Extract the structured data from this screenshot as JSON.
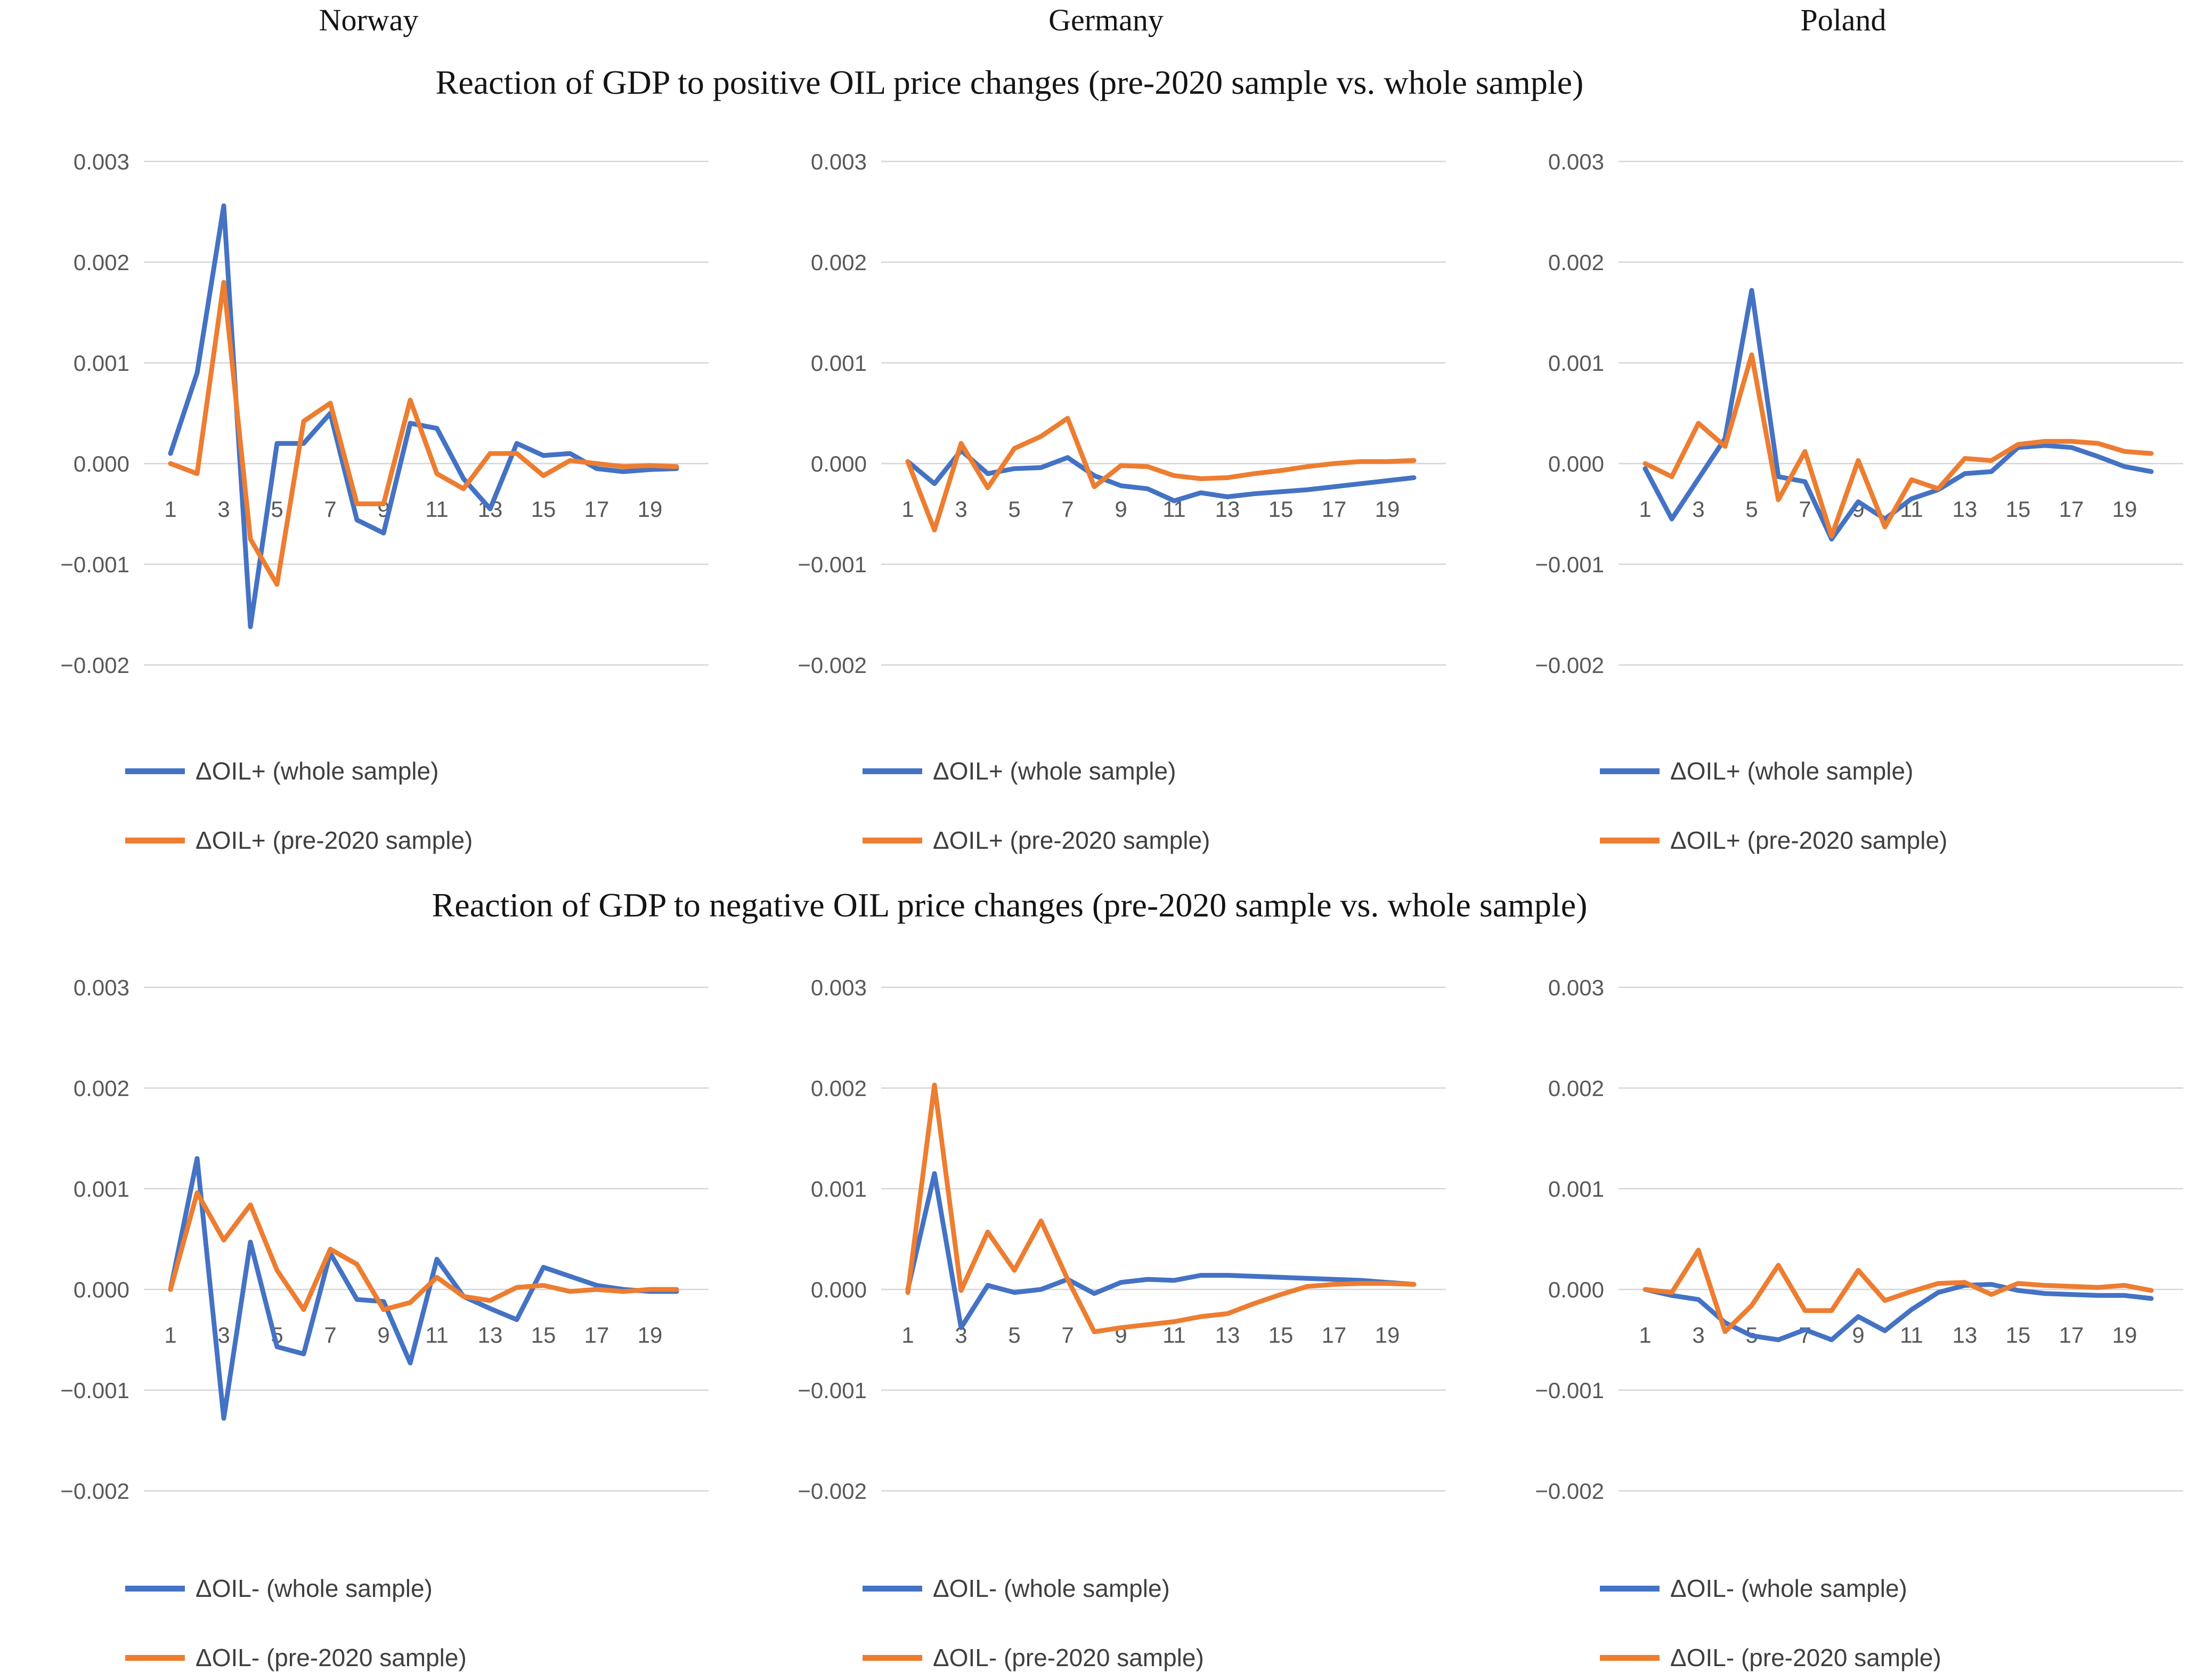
{
  "columns": [
    "Norway",
    "Germany",
    "Poland"
  ],
  "sections": [
    {
      "title": "Reaction of GDP to positive OIL price changes (pre-2020 sample vs. whole sample)"
    },
    {
      "title": "Reaction of GDP to negative OIL price changes (pre-2020 sample vs. whole sample)"
    }
  ],
  "colors": {
    "whole_sample_line": "#4472C4",
    "pre2020_sample_line": "#ED7D31",
    "gridline": "#D6D6D6",
    "tick_text": "#595959",
    "title_text": "#141414"
  },
  "axis": {
    "y_ticks": [
      0.003,
      0.002,
      0.001,
      0.0,
      -0.001,
      -0.002
    ],
    "y_tick_labels": [
      "0.003",
      "0.002",
      "0.001",
      "0.000",
      "−0.001",
      "−0.002"
    ],
    "x_ticks": [
      1,
      3,
      5,
      7,
      9,
      11,
      13,
      15,
      17,
      19
    ],
    "x_range": [
      1,
      20
    ],
    "grid": "horizontal-only",
    "legend_position": "below-left"
  },
  "chart_data": [
    {
      "id": "norway-positive",
      "country": "Norway",
      "shock": "positive",
      "type": "line",
      "x": [
        1,
        2,
        3,
        4,
        5,
        6,
        7,
        8,
        9,
        10,
        11,
        12,
        13,
        14,
        15,
        16,
        17,
        18,
        19,
        20
      ],
      "ylim": [
        -0.002,
        0.003
      ],
      "series": [
        {
          "name": "ΔOIL+ (whole sample)",
          "color": "#4472C4",
          "values": [
            0.0001,
            0.0009,
            0.00256,
            -0.00162,
            0.0002,
            0.0002,
            0.0005,
            -0.00056,
            -0.00069,
            0.0004,
            0.00035,
            -0.00015,
            -0.00045,
            0.0002,
            8e-05,
            0.0001,
            -5e-05,
            -8e-05,
            -6e-05,
            -5e-05
          ]
        },
        {
          "name": "ΔOIL+ (pre-2020 sample)",
          "color": "#ED7D31",
          "values": [
            0.0,
            -0.0001,
            0.0018,
            -0.00075,
            -0.0012,
            0.00042,
            0.0006,
            -0.0004,
            -0.0004,
            0.00063,
            -0.0001,
            -0.00025,
            0.0001,
            0.0001,
            -0.00012,
            3e-05,
            0.0,
            -3e-05,
            -2e-05,
            -3e-05
          ]
        }
      ]
    },
    {
      "id": "germany-positive",
      "country": "Germany",
      "shock": "positive",
      "type": "line",
      "x": [
        1,
        2,
        3,
        4,
        5,
        6,
        7,
        8,
        9,
        10,
        11,
        12,
        13,
        14,
        15,
        16,
        17,
        18,
        19,
        20
      ],
      "ylim": [
        -0.002,
        0.003
      ],
      "series": [
        {
          "name": "ΔOIL+ (whole sample)",
          "color": "#4472C4",
          "values": [
            2e-05,
            -0.0002,
            0.00013,
            -0.0001,
            -5e-05,
            -4e-05,
            6e-05,
            -0.00012,
            -0.00022,
            -0.00025,
            -0.00037,
            -0.00029,
            -0.00033,
            -0.0003,
            -0.00028,
            -0.00026,
            -0.00023,
            -0.0002,
            -0.00017,
            -0.00014
          ]
        },
        {
          "name": "ΔOIL+ (pre-2020 sample)",
          "color": "#ED7D31",
          "values": [
            2e-05,
            -0.00066,
            0.0002,
            -0.00024,
            0.00015,
            0.00027,
            0.00045,
            -0.00023,
            -2e-05,
            -3e-05,
            -0.00012,
            -0.00015,
            -0.00014,
            -0.0001,
            -7e-05,
            -3e-05,
            0.0,
            2e-05,
            2e-05,
            3e-05
          ]
        }
      ]
    },
    {
      "id": "poland-positive",
      "country": "Poland",
      "shock": "positive",
      "type": "line",
      "x": [
        1,
        2,
        3,
        4,
        5,
        6,
        7,
        8,
        9,
        10,
        11,
        12,
        13,
        14,
        15,
        16,
        17,
        18,
        19,
        20
      ],
      "ylim": [
        -0.002,
        0.003
      ],
      "series": [
        {
          "name": "ΔOIL+ (whole sample)",
          "color": "#4472C4",
          "values": [
            -5e-05,
            -0.00055,
            -0.00015,
            0.00025,
            0.00172,
            -0.00013,
            -0.00018,
            -0.00075,
            -0.00038,
            -0.00055,
            -0.00035,
            -0.00026,
            -0.0001,
            -8e-05,
            0.00016,
            0.00018,
            0.00016,
            7e-05,
            -3e-05,
            -8e-05
          ]
        },
        {
          "name": "ΔOIL+ (pre-2020 sample)",
          "color": "#ED7D31",
          "values": [
            0.0,
            -0.00013,
            0.0004,
            0.00017,
            0.00108,
            -0.00036,
            0.00012,
            -0.00072,
            3e-05,
            -0.00063,
            -0.00016,
            -0.00025,
            5e-05,
            3e-05,
            0.00019,
            0.00022,
            0.00022,
            0.0002,
            0.00012,
            0.0001
          ]
        }
      ]
    },
    {
      "id": "norway-negative",
      "country": "Norway",
      "shock": "negative",
      "type": "line",
      "x": [
        1,
        2,
        3,
        4,
        5,
        6,
        7,
        8,
        9,
        10,
        11,
        12,
        13,
        14,
        15,
        16,
        17,
        18,
        19,
        20
      ],
      "ylim": [
        -0.002,
        0.003
      ],
      "series": [
        {
          "name": "ΔOIL- (whole sample)",
          "color": "#4472C4",
          "values": [
            0.0,
            0.0013,
            -0.00128,
            0.00047,
            -0.00057,
            -0.00064,
            0.00036,
            -0.0001,
            -0.00012,
            -0.00073,
            0.0003,
            -7e-05,
            -0.00019,
            -0.0003,
            0.00022,
            0.00013,
            4e-05,
            0.0,
            -2e-05,
            -2e-05
          ]
        },
        {
          "name": "ΔOIL- (pre-2020 sample)",
          "color": "#ED7D31",
          "values": [
            0.0,
            0.00096,
            0.00049,
            0.00084,
            0.00019,
            -0.0002,
            0.0004,
            0.00025,
            -0.0002,
            -0.00013,
            0.00012,
            -7e-05,
            -0.00011,
            2e-05,
            4e-05,
            -2e-05,
            0.0,
            -2e-05,
            0.0,
            0.0
          ]
        }
      ]
    },
    {
      "id": "germany-negative",
      "country": "Germany",
      "shock": "negative",
      "type": "line",
      "x": [
        1,
        2,
        3,
        4,
        5,
        6,
        7,
        8,
        9,
        10,
        11,
        12,
        13,
        14,
        15,
        16,
        17,
        18,
        19,
        20
      ],
      "ylim": [
        -0.002,
        0.003
      ],
      "series": [
        {
          "name": "ΔOIL- (whole sample)",
          "color": "#4472C4",
          "values": [
            0.0,
            0.00115,
            -0.00038,
            4e-05,
            -3e-05,
            0.0,
            0.0001,
            -4e-05,
            7e-05,
            0.0001,
            9e-05,
            0.00014,
            0.00014,
            0.00013,
            0.00012,
            0.00011,
            0.0001,
            9e-05,
            7e-05,
            5e-05
          ]
        },
        {
          "name": "ΔOIL- (pre-2020 sample)",
          "color": "#ED7D31",
          "values": [
            -3e-05,
            0.00203,
            -1e-05,
            0.00057,
            0.00019,
            0.00068,
            0.0001,
            -0.00042,
            -0.00038,
            -0.00035,
            -0.00032,
            -0.00027,
            -0.00024,
            -0.00014,
            -5e-05,
            3e-05,
            5e-05,
            6e-05,
            6e-05,
            5e-05
          ]
        }
      ]
    },
    {
      "id": "poland-negative",
      "country": "Poland",
      "shock": "negative",
      "type": "line",
      "x": [
        1,
        2,
        3,
        4,
        5,
        6,
        7,
        8,
        9,
        10,
        11,
        12,
        13,
        14,
        15,
        16,
        17,
        18,
        19,
        20
      ],
      "ylim": [
        -0.002,
        0.003
      ],
      "series": [
        {
          "name": "ΔOIL- (whole sample)",
          "color": "#4472C4",
          "values": [
            0.0,
            -6e-05,
            -0.0001,
            -0.00033,
            -0.00046,
            -0.0005,
            -0.0004,
            -0.0005,
            -0.00027,
            -0.00041,
            -0.0002,
            -3e-05,
            4e-05,
            5e-05,
            -1e-05,
            -4e-05,
            -5e-05,
            -6e-05,
            -6e-05,
            -9e-05
          ]
        },
        {
          "name": "ΔOIL- (pre-2020 sample)",
          "color": "#ED7D31",
          "values": [
            0.0,
            -3e-05,
            0.00039,
            -0.00042,
            -0.00016,
            0.00024,
            -0.00021,
            -0.00021,
            0.00019,
            -0.00011,
            -2e-05,
            6e-05,
            7e-05,
            -5e-05,
            6e-05,
            4e-05,
            3e-05,
            2e-05,
            4e-05,
            -1e-05
          ]
        }
      ]
    }
  ]
}
